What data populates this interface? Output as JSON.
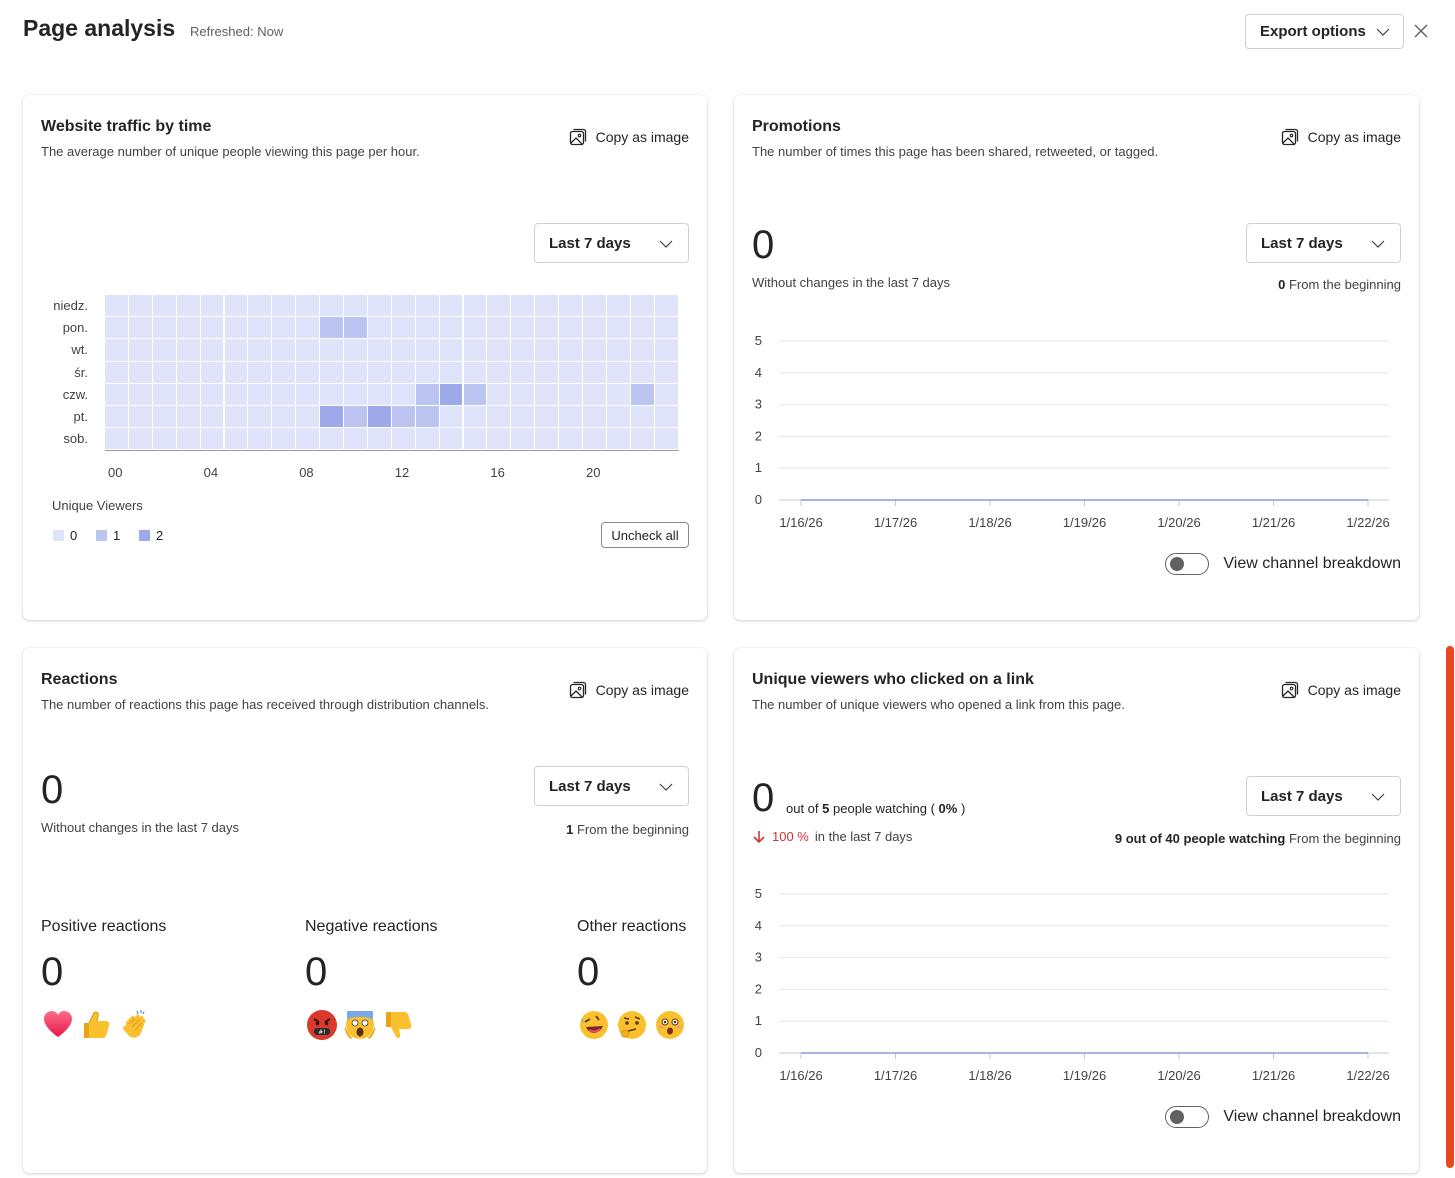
{
  "header": {
    "title": "Page analysis",
    "refreshed": "Refreshed: Now",
    "export_label": "Export options"
  },
  "copy_label": "Copy as image",
  "traffic": {
    "title": "Website traffic by time",
    "subtitle": "The average number of unique people viewing this page per hour.",
    "range": "Last 7 days",
    "legend_title": "Unique Viewers",
    "legend": [
      "0",
      "1",
      "2"
    ],
    "uncheck_label": "Uncheck all"
  },
  "promotions": {
    "title": "Promotions",
    "subtitle": "The number of times this page has been shared, retweeted, or tagged.",
    "range": "Last 7 days",
    "value": "0",
    "change_note": "Without changes in the last 7 days",
    "from_beginning_value": "0",
    "from_beginning_label": "From the beginning",
    "toggle_label": "View channel breakdown"
  },
  "reactions": {
    "title": "Reactions",
    "subtitle": "The number of reactions this page has received through distribution channels.",
    "range": "Last 7 days",
    "value": "0",
    "change_note": "Without changes in the last 7 days",
    "from_beginning_value": "1",
    "from_beginning_label": "From the beginning",
    "positive_label": "Positive reactions",
    "positive_value": "0",
    "negative_label": "Negative reactions",
    "negative_value": "0",
    "other_label": "Other reactions",
    "other_value": "0",
    "positive_emojis": [
      "heart-emoji",
      "thumbs-up-emoji",
      "clapping-emoji"
    ],
    "negative_emojis": [
      "angry-emoji",
      "scream-emoji",
      "thumbs-down-emoji"
    ],
    "other_emojis": [
      "laughing-emoji",
      "thinking-emoji",
      "surprised-emoji"
    ]
  },
  "link_clicks": {
    "title": "Unique viewers who clicked on a link",
    "subtitle": "The number of unique viewers who opened a link from this page.",
    "range": "Last 7 days",
    "value": "0",
    "out_of_prefix": "out of",
    "out_of_value": "5",
    "out_of_suffix": "people watching (",
    "percent": "0%",
    "percent_close": ")",
    "change_pct": "100 %",
    "change_note": "in the last 7 days",
    "from_beginning_value": "9 out of 40 people watching",
    "from_beginning_label": "From the beginning",
    "toggle_label": "View channel breakdown"
  },
  "colors": {
    "heat_0": "#e0e4fa",
    "heat_1": "#bcc5f2",
    "heat_2": "#9ea9e9",
    "line": "#8b9bd6",
    "down_arrow": "#d13438",
    "scroll_accent": "#e8471f"
  },
  "chart_data": [
    {
      "type": "heatmap",
      "title": "Website traffic by time",
      "y": [
        "niedz.",
        "pon.",
        "wt.",
        "śr.",
        "czw.",
        "pt.",
        "sob."
      ],
      "x_hours": [
        0,
        1,
        2,
        3,
        4,
        5,
        6,
        7,
        8,
        9,
        10,
        11,
        12,
        13,
        14,
        15,
        16,
        17,
        18,
        19,
        20,
        21,
        22,
        23
      ],
      "x_tick_labels": [
        "00",
        "04",
        "08",
        "12",
        "16",
        "20"
      ],
      "values": [
        [
          0,
          0,
          0,
          0,
          0,
          0,
          0,
          0,
          0,
          0,
          0,
          0,
          0,
          0,
          0,
          0,
          0,
          0,
          0,
          0,
          0,
          0,
          0,
          0
        ],
        [
          0,
          0,
          0,
          0,
          0,
          0,
          0,
          0,
          0,
          1,
          1,
          0,
          0,
          0,
          0,
          0,
          0,
          0,
          0,
          0,
          0,
          0,
          0,
          0
        ],
        [
          0,
          0,
          0,
          0,
          0,
          0,
          0,
          0,
          0,
          0,
          0,
          0,
          0,
          0,
          0,
          0,
          0,
          0,
          0,
          0,
          0,
          0,
          0,
          0
        ],
        [
          0,
          0,
          0,
          0,
          0,
          0,
          0,
          0,
          0,
          0,
          0,
          0,
          0,
          0,
          0,
          0,
          0,
          0,
          0,
          0,
          0,
          0,
          0,
          0
        ],
        [
          0,
          0,
          0,
          0,
          0,
          0,
          0,
          0,
          0,
          0,
          0,
          0,
          0,
          1,
          2,
          1,
          0,
          0,
          0,
          0,
          0,
          0,
          1,
          0
        ],
        [
          0,
          0,
          0,
          0,
          0,
          0,
          0,
          0,
          0,
          2,
          1,
          2,
          1,
          1,
          0,
          0,
          0,
          0,
          0,
          0,
          0,
          0,
          0,
          0
        ],
        [
          0,
          0,
          0,
          0,
          0,
          0,
          0,
          0,
          0,
          0,
          0,
          0,
          0,
          0,
          0,
          0,
          0,
          0,
          0,
          0,
          0,
          0,
          0,
          0
        ]
      ],
      "legend_title": "Unique Viewers",
      "legend": [
        "0",
        "1",
        "2"
      ]
    },
    {
      "type": "line",
      "x": [
        "1/16/26",
        "1/17/26",
        "1/18/26",
        "1/19/26",
        "1/20/26",
        "1/21/26",
        "1/22/26"
      ],
      "series": [
        {
          "values": [
            0,
            0,
            0,
            0,
            0,
            0,
            0
          ]
        }
      ],
      "ylim": [
        0,
        5
      ],
      "y_ticks": [
        0,
        1,
        2,
        3,
        4,
        5
      ],
      "grid": true
    },
    {
      "type": "line",
      "x": [
        "1/16/26",
        "1/17/26",
        "1/18/26",
        "1/19/26",
        "1/20/26",
        "1/21/26",
        "1/22/26"
      ],
      "series": [
        {
          "values": [
            0,
            0,
            0,
            0,
            0,
            0,
            0
          ]
        }
      ],
      "ylim": [
        0,
        5
      ],
      "y_ticks": [
        0,
        1,
        2,
        3,
        4,
        5
      ],
      "grid": true
    }
  ]
}
